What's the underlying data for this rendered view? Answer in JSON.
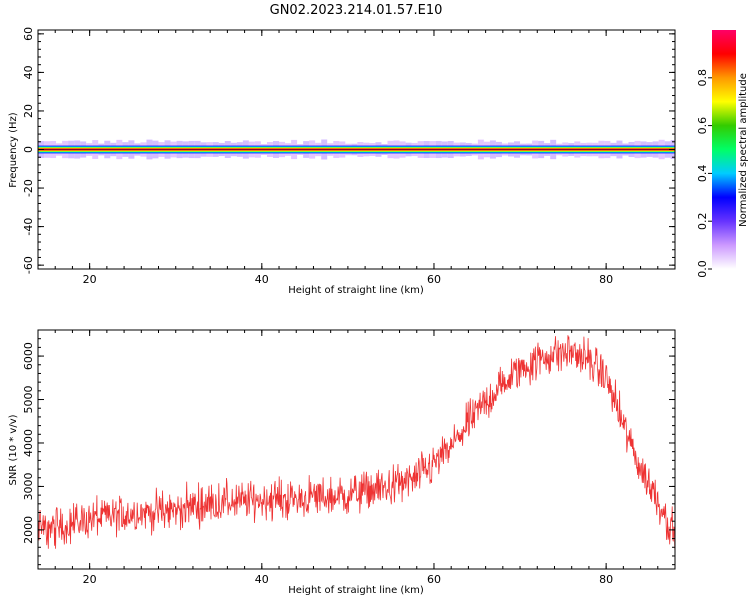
{
  "figure": {
    "title": "GN02.2023.214.01.57.E10"
  },
  "chart_data": [
    {
      "type": "heatmap",
      "xlabel": "Height of straight line (km)",
      "ylabel": "Frequency (Hz)",
      "xlim": [
        14,
        88
      ],
      "ylim": [
        -62,
        62
      ],
      "xticks": [
        20,
        40,
        60,
        80
      ],
      "yticks": [
        -60,
        -40,
        -20,
        0,
        20,
        40,
        60
      ],
      "band_center_hz": 0,
      "band_halfwidth_hz": 2,
      "halo_halfwidth_hz": 4,
      "grid": false,
      "colorbar": {
        "label": "Normalized spectral amplitude",
        "range": [
          0,
          1
        ],
        "ticks": [
          "0.0",
          "0.2",
          "0.4",
          "0.6",
          "0.8"
        ],
        "colors": [
          "#ffffff",
          "#cc99ff",
          "#6633ff",
          "#0000ff",
          "#00ccff",
          "#00ff66",
          "#33cc00",
          "#ffff00",
          "#ff9900",
          "#ff0000",
          "#ff0066"
        ]
      }
    },
    {
      "type": "line",
      "xlabel": "Height of straight line (km)",
      "ylabel": "SNR (10 * v/v)",
      "xlim": [
        14,
        88
      ],
      "ylim": [
        1100,
        6600
      ],
      "xticks": [
        20,
        40,
        60,
        80
      ],
      "yticks": [
        2000,
        3000,
        4000,
        5000,
        6000
      ],
      "grid": false,
      "series": [
        {
          "color": "#ee3333",
          "x": [
            14,
            16,
            18,
            20,
            22,
            24,
            26,
            28,
            30,
            32,
            34,
            36,
            38,
            40,
            42,
            44,
            46,
            48,
            50,
            52,
            54,
            56,
            58,
            60,
            62,
            64,
            66,
            68,
            70,
            72,
            74,
            76,
            78,
            80,
            82,
            84,
            86,
            88
          ],
          "y": [
            2000,
            2050,
            2150,
            2250,
            2300,
            2350,
            2400,
            2420,
            2450,
            2550,
            2600,
            2650,
            2650,
            2700,
            2700,
            2700,
            2750,
            2750,
            2800,
            2900,
            2950,
            3050,
            3200,
            3500,
            3900,
            4450,
            4950,
            5350,
            5700,
            5900,
            6050,
            6100,
            5900,
            5500,
            4400,
            3400,
            2700,
            1850
          ],
          "noise_amplitude": 380
        }
      ]
    }
  ]
}
